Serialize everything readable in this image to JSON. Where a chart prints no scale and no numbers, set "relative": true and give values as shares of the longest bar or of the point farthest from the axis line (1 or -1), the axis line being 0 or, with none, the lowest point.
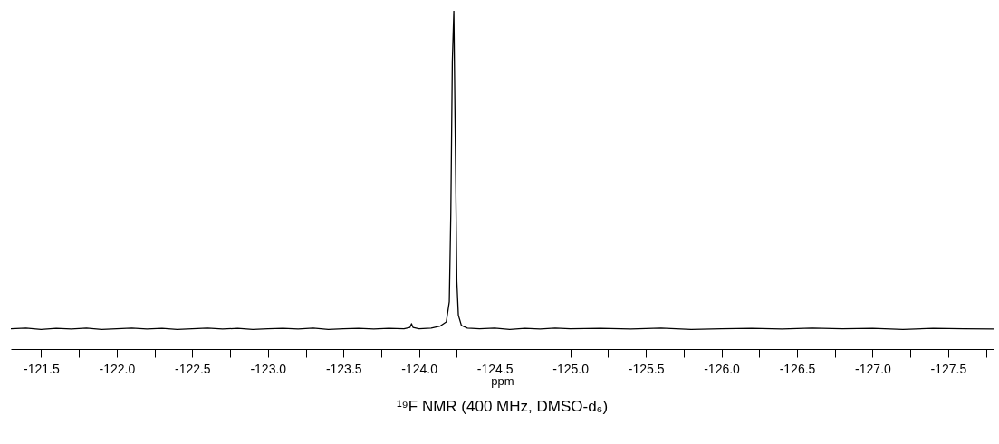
{
  "chart_data": {
    "type": "line",
    "relative": true,
    "title": "¹⁹F NMR (400 MHz, DMSO-d₆)",
    "xlabel": "ppm",
    "xlim": [
      -121.3,
      -127.8
    ],
    "xticks": [
      -121.5,
      {
        "value": -121.75,
        "label": null
      },
      {
        "value": -122,
        "label": "-122.0"
      },
      {
        "value": -122.25,
        "label": null
      },
      -122.5,
      {
        "value": -122.75,
        "label": null
      },
      {
        "value": -123,
        "label": "-123.0"
      },
      {
        "value": -123.25,
        "label": null
      },
      -123.5,
      {
        "value": -123.75,
        "label": null
      },
      {
        "value": -124,
        "label": "-124.0"
      },
      {
        "value": -124.25,
        "label": null
      },
      -124.5,
      {
        "value": -124.75,
        "label": null
      },
      {
        "value": -125,
        "label": "-125.0"
      },
      {
        "value": -125.25,
        "label": null
      },
      -125.5,
      {
        "value": -125.75,
        "label": null
      },
      {
        "value": -126,
        "label": "-126.0"
      },
      {
        "value": -126.25,
        "label": null
      },
      -126.5,
      {
        "value": -126.75,
        "label": null
      },
      {
        "value": -127,
        "label": "-127.0"
      },
      {
        "value": -127.25,
        "label": null
      },
      -127.5,
      {
        "value": -127.75,
        "label": null
      }
    ],
    "grid": false,
    "marker": "none",
    "line_style": "solid",
    "series": [
      {
        "color": "#000000",
        "x": [
          -121.3,
          -121.4,
          -121.5,
          -121.6,
          -121.7,
          -121.8,
          -121.9,
          -122.0,
          -122.1,
          -122.2,
          -122.3,
          -122.4,
          -122.5,
          -122.6,
          -122.7,
          -122.8,
          -122.9,
          -123.0,
          -123.1,
          -123.2,
          -123.3,
          -123.4,
          -123.5,
          -123.6,
          -123.7,
          -123.8,
          -123.9,
          -123.94,
          -123.95,
          -123.96,
          -124.0,
          -124.08,
          -124.14,
          -124.18,
          -124.2,
          -124.21,
          -124.22,
          -124.23,
          -124.24,
          -124.25,
          -124.26,
          -124.28,
          -124.32,
          -124.4,
          -124.5,
          -124.6,
          -124.7,
          -124.8,
          -124.9,
          -125.0,
          -125.2,
          -125.4,
          -125.6,
          -125.8,
          -126.0,
          -126.2,
          -126.4,
          -126.6,
          -126.8,
          -127.0,
          -127.2,
          -127.4,
          -127.6,
          -127.8
        ],
        "values": [
          0.06,
          0.062,
          0.058,
          0.061,
          0.059,
          0.062,
          0.058,
          0.06,
          0.062,
          0.059,
          0.061,
          0.058,
          0.06,
          0.062,
          0.059,
          0.061,
          0.058,
          0.06,
          0.061,
          0.059,
          0.062,
          0.058,
          0.06,
          0.061,
          0.059,
          0.061,
          0.06,
          0.064,
          0.075,
          0.064,
          0.06,
          0.062,
          0.068,
          0.08,
          0.14,
          0.4,
          0.85,
          1.0,
          0.6,
          0.2,
          0.1,
          0.07,
          0.062,
          0.06,
          0.062,
          0.058,
          0.061,
          0.059,
          0.062,
          0.06,
          0.061,
          0.059,
          0.062,
          0.058,
          0.06,
          0.061,
          0.059,
          0.062,
          0.06,
          0.061,
          0.058,
          0.061,
          0.06,
          0.059
        ]
      }
    ]
  }
}
